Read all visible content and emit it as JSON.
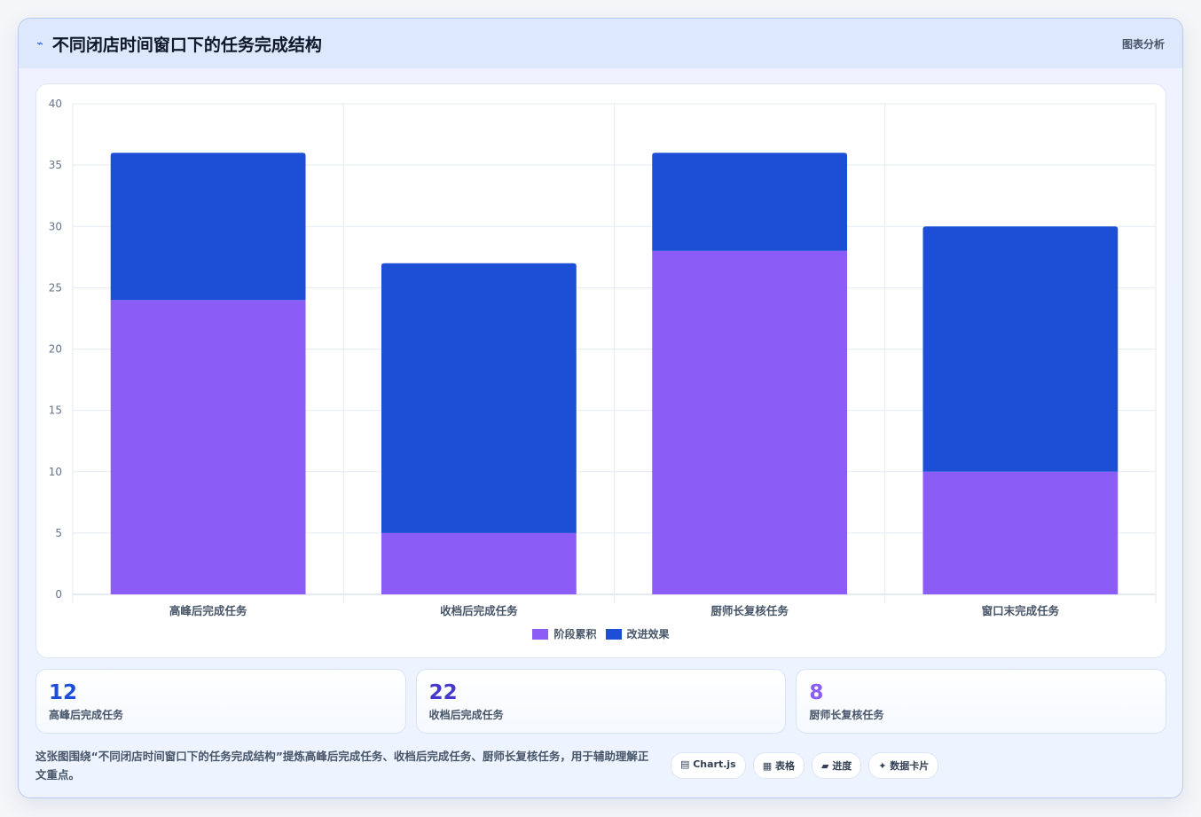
{
  "header": {
    "icon": "trend-icon",
    "title": "不同闭店时间窗口下的任务完成结构",
    "tag": "图表分析"
  },
  "chart_data": {
    "type": "bar",
    "stacked": true,
    "categories": [
      "高峰后完成任务",
      "收档后完成任务",
      "厨师长复核任务",
      "窗口末完成任务"
    ],
    "series": [
      {
        "name": "阶段累积",
        "color": "#8b5cf6",
        "values": [
          24,
          5,
          28,
          10
        ]
      },
      {
        "name": "改进效果",
        "color": "#1d4fd6",
        "values": [
          12,
          22,
          8,
          20
        ]
      }
    ],
    "ylim": [
      0,
      40
    ],
    "yticks": [
      0,
      5,
      10,
      15,
      20,
      25,
      30,
      35,
      40
    ],
    "grid": true,
    "legend": "bottom"
  },
  "stats": [
    {
      "value": "12",
      "label": "高峰后完成任务",
      "color": "#1d4ed8"
    },
    {
      "value": "22",
      "label": "收档后完成任务",
      "color": "#4338ca"
    },
    {
      "value": "8",
      "label": "厨师长复核任务",
      "color": "#8b5cf6"
    }
  ],
  "footer": {
    "note": "这张图围绕“不同闭店时间窗口下的任务完成结构”提炼高峰后完成任务、收档后完成任务、厨师长复核任务，用于辅助理解正文重点。",
    "chips": [
      "▤ Chart.js",
      "▦ 表格",
      "▰ 进度",
      "✦ 数据卡片"
    ]
  }
}
